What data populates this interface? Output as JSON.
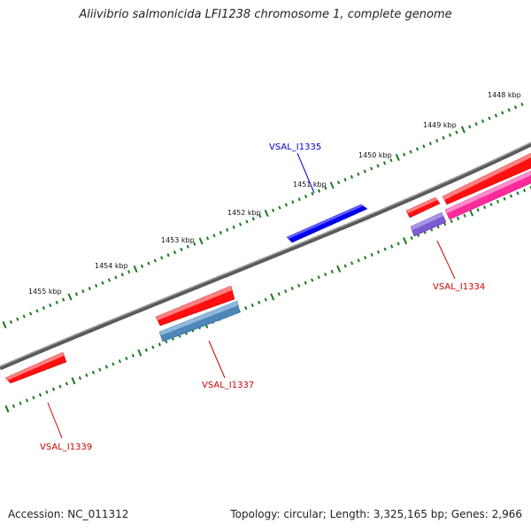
{
  "title": "Aliivibrio salmonicida LFI1238 chromosome 1, complete genome",
  "footer": {
    "accession": "Accession: NC_011312",
    "summary": "Topology: circular; Length: 3,325,165 bp; Genes: 2,966"
  },
  "scale_labels": [
    "1448 kbp",
    "1449 kbp",
    "1450 kbp",
    "1451 kbp",
    "1452 kbp",
    "1453 kbp",
    "1454 kbp",
    "1455 kbp"
  ],
  "gene_labels": [
    {
      "name": "VSAL_I1335",
      "color": "#0000cc"
    },
    {
      "name": "VSAL_I1334",
      "color": "#cc0000"
    },
    {
      "name": "VSAL_I1337",
      "color": "#cc0000"
    },
    {
      "name": "VSAL_I1339",
      "color": "#cc0000"
    }
  ],
  "colors": {
    "backbone": "#808080",
    "tick": "#1a7a1a",
    "gene_red": "#ff0000",
    "gene_blue": "#0000ee",
    "gene_pink": "#ff2a9a",
    "gene_steelblue": "#4f86b8",
    "gene_purple": "#7a5bd0"
  }
}
